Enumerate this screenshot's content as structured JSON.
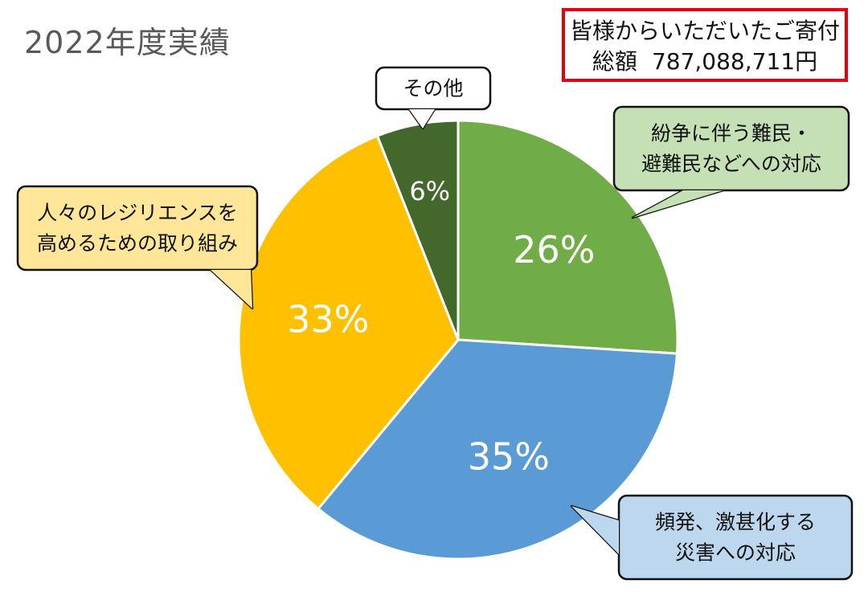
{
  "title": "2022年度実績",
  "summary": {
    "line1": "皆様からいただいたご寄付",
    "total_label": "総額",
    "total_amount": "787,088,711円"
  },
  "chart_data": {
    "type": "pie",
    "title": "2022年度実績",
    "start_angle_deg": 0,
    "direction": "clockwise",
    "slices": [
      {
        "label_lines": [
          "紛争に伴う難民・",
          "避難民などへの対応"
        ],
        "value": 26,
        "display": "26%",
        "color": "#70ad47",
        "callout_fill": "#c5e0b4"
      },
      {
        "label_lines": [
          "頻発、激甚化する",
          "災害への対応"
        ],
        "value": 35,
        "display": "35%",
        "color": "#5b9bd5",
        "callout_fill": "#bdd7ee"
      },
      {
        "label_lines": [
          "人々のレジリエンスを",
          "高めるための取り組み"
        ],
        "value": 33,
        "display": "33%",
        "color": "#ffc000",
        "callout_fill": "#ffe699"
      },
      {
        "label_lines": [
          "その他"
        ],
        "value": 6,
        "display": "6%",
        "color": "#43682b",
        "callout_fill": "#ffffff"
      }
    ]
  }
}
